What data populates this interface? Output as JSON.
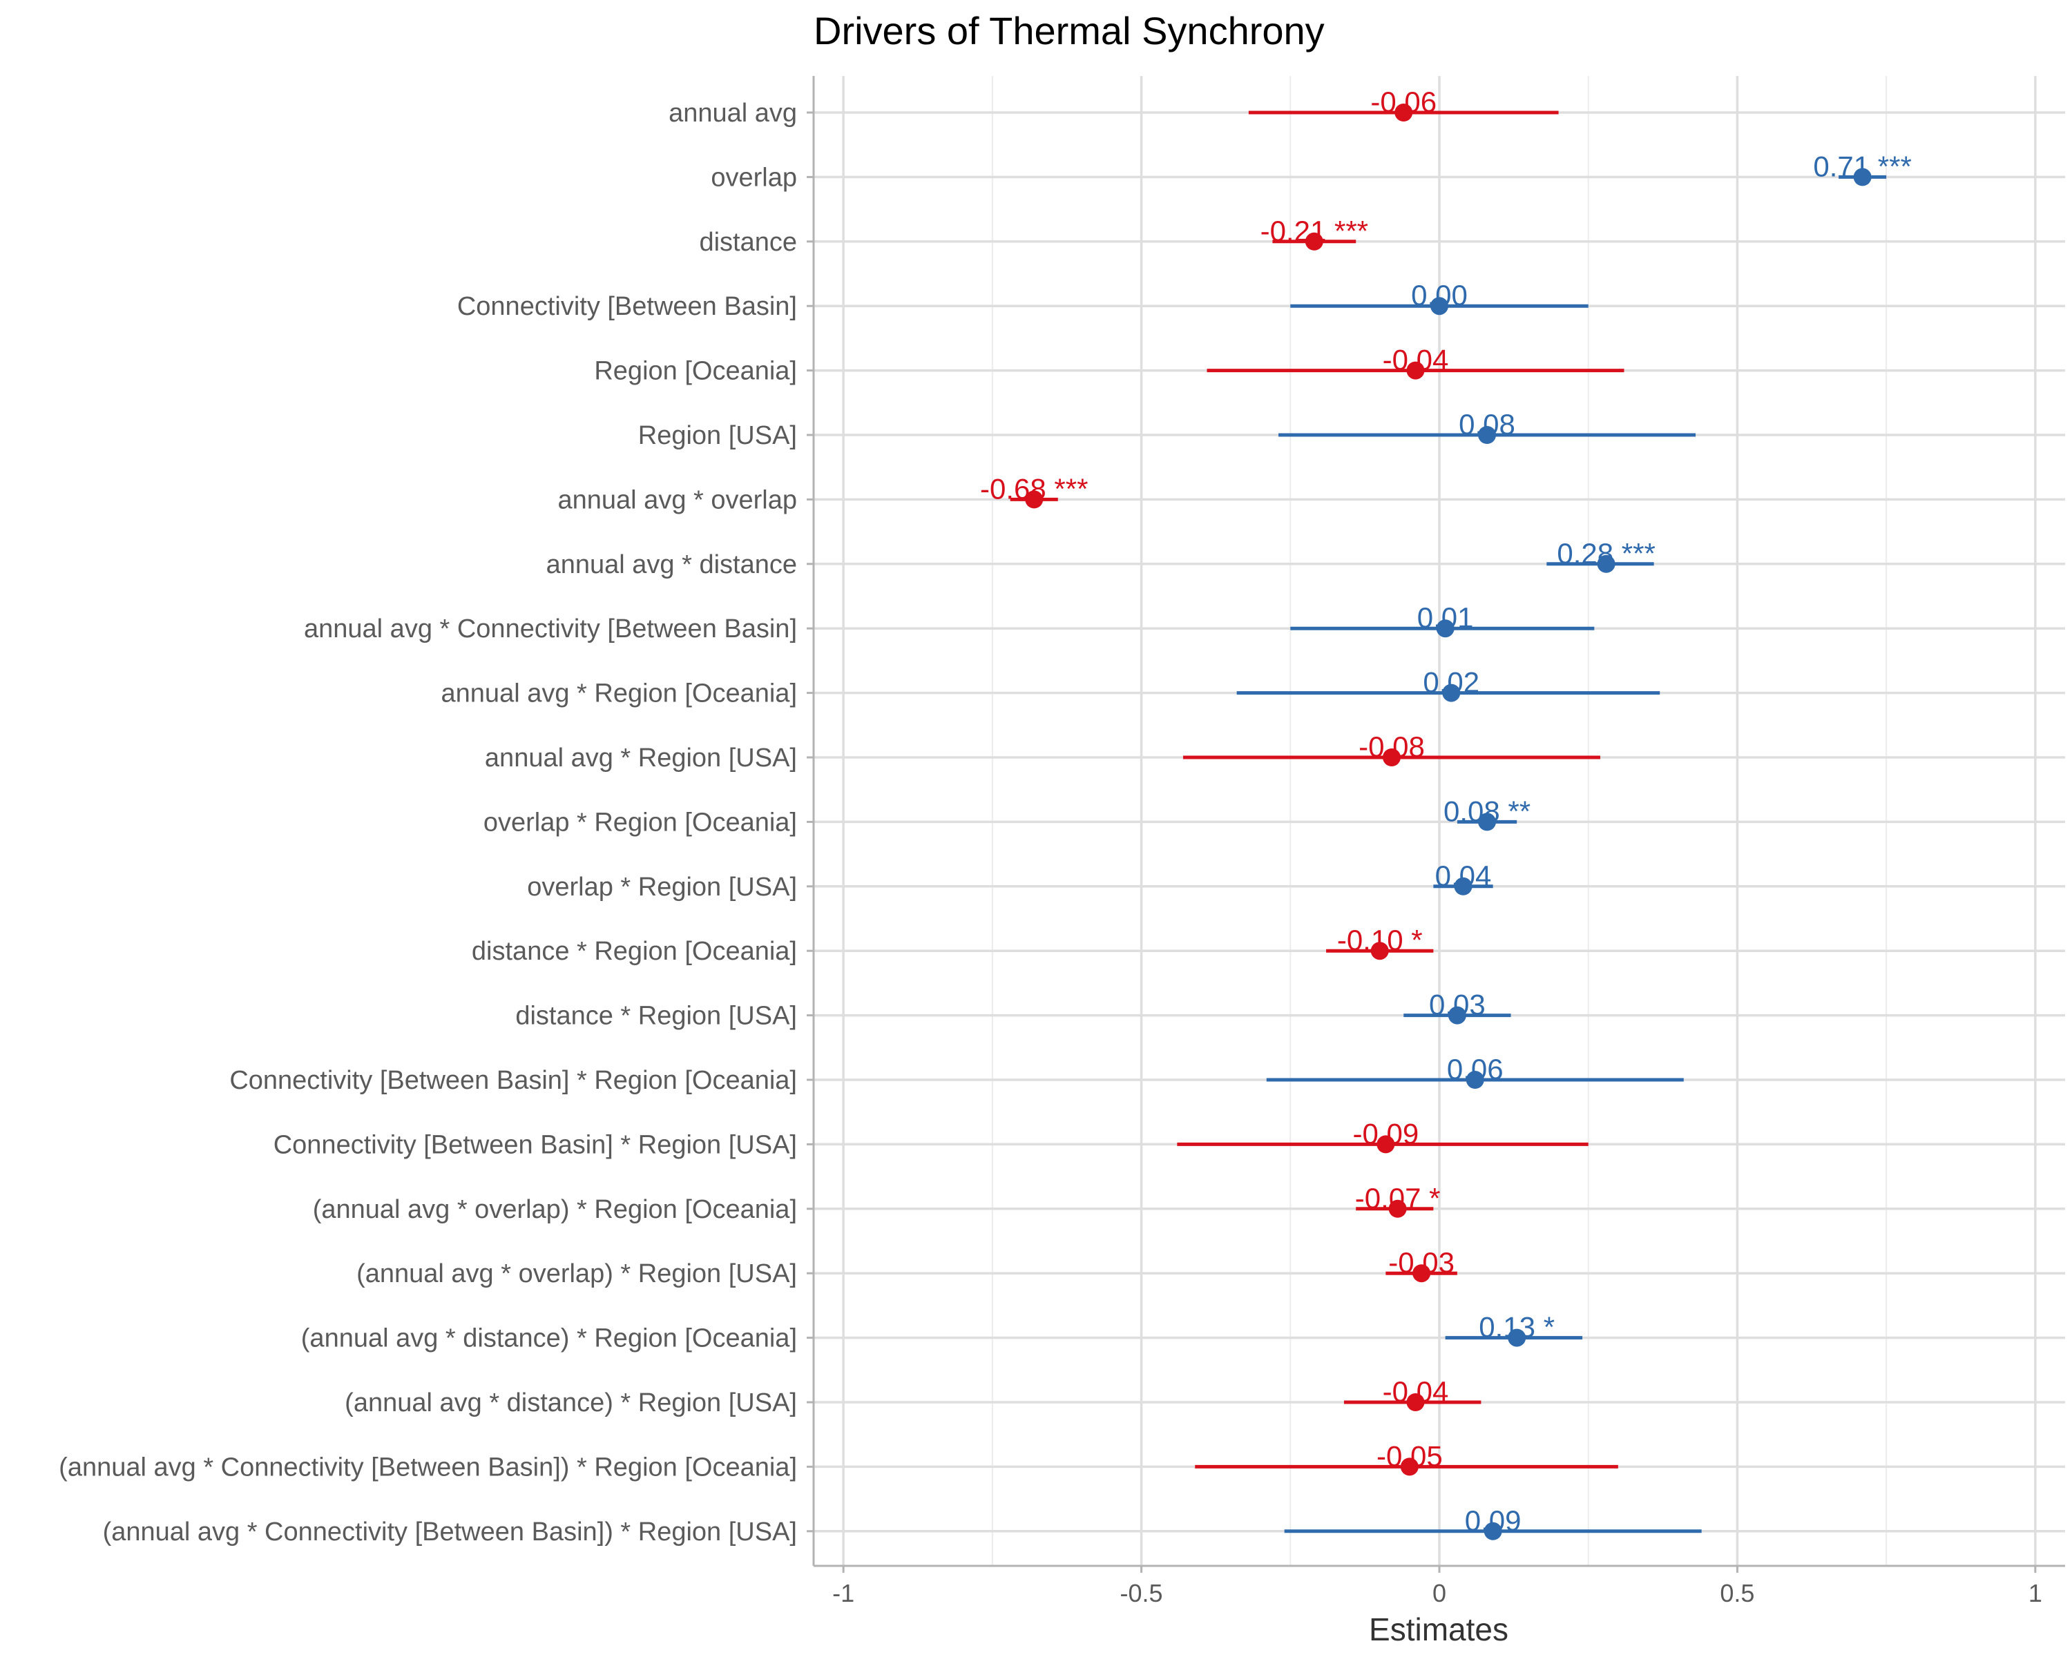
{
  "chart_data": {
    "type": "forest",
    "title": "Drivers of Thermal Synchrony",
    "xlabel": "Estimates",
    "ylabel": "",
    "xlim": [
      -1.05,
      1.05
    ],
    "x_ticks": [
      -1,
      -0.5,
      0,
      0.5,
      1
    ],
    "x_tick_labels": [
      "-1",
      "-0.5",
      "0",
      "0.5",
      "1"
    ],
    "grid": true,
    "colors": {
      "positive": "#2f6aad",
      "negative": "#d7101c"
    },
    "terms": [
      {
        "term": "annual avg",
        "estimate": -0.06,
        "ci_low": -0.32,
        "ci_high": 0.2,
        "label": "-0.06"
      },
      {
        "term": "overlap",
        "estimate": 0.71,
        "ci_low": 0.67,
        "ci_high": 0.75,
        "label": "0.71 ***"
      },
      {
        "term": "distance",
        "estimate": -0.21,
        "ci_low": -0.28,
        "ci_high": -0.14,
        "label": "-0.21 ***"
      },
      {
        "term": "Connectivity [Between Basin]",
        "estimate": 0.0,
        "ci_low": -0.25,
        "ci_high": 0.25,
        "label": "0.00"
      },
      {
        "term": "Region [Oceania]",
        "estimate": -0.04,
        "ci_low": -0.39,
        "ci_high": 0.31,
        "label": "-0.04"
      },
      {
        "term": "Region [USA]",
        "estimate": 0.08,
        "ci_low": -0.27,
        "ci_high": 0.43,
        "label": "0.08"
      },
      {
        "term": "annual avg * overlap",
        "estimate": -0.68,
        "ci_low": -0.72,
        "ci_high": -0.64,
        "label": "-0.68 ***"
      },
      {
        "term": "annual avg * distance",
        "estimate": 0.28,
        "ci_low": 0.18,
        "ci_high": 0.36,
        "label": "0.28 ***"
      },
      {
        "term": "annual avg * Connectivity [Between Basin]",
        "estimate": 0.01,
        "ci_low": -0.25,
        "ci_high": 0.26,
        "label": "0.01"
      },
      {
        "term": "annual avg * Region [Oceania]",
        "estimate": 0.02,
        "ci_low": -0.34,
        "ci_high": 0.37,
        "label": "0.02"
      },
      {
        "term": "annual avg * Region [USA]",
        "estimate": -0.08,
        "ci_low": -0.43,
        "ci_high": 0.27,
        "label": "-0.08"
      },
      {
        "term": "overlap * Region [Oceania]",
        "estimate": 0.08,
        "ci_low": 0.03,
        "ci_high": 0.13,
        "label": "0.08 **"
      },
      {
        "term": "overlap * Region [USA]",
        "estimate": 0.04,
        "ci_low": -0.01,
        "ci_high": 0.09,
        "label": "0.04"
      },
      {
        "term": "distance * Region [Oceania]",
        "estimate": -0.1,
        "ci_low": -0.19,
        "ci_high": -0.01,
        "label": "-0.10 *"
      },
      {
        "term": "distance * Region [USA]",
        "estimate": 0.03,
        "ci_low": -0.06,
        "ci_high": 0.12,
        "label": "0.03"
      },
      {
        "term": "Connectivity [Between Basin] * Region [Oceania]",
        "estimate": 0.06,
        "ci_low": -0.29,
        "ci_high": 0.41,
        "label": "0.06"
      },
      {
        "term": "Connectivity [Between Basin] * Region [USA]",
        "estimate": -0.09,
        "ci_low": -0.44,
        "ci_high": 0.25,
        "label": "-0.09"
      },
      {
        "term": "(annual avg * overlap) * Region [Oceania]",
        "estimate": -0.07,
        "ci_low": -0.14,
        "ci_high": -0.01,
        "label": "-0.07 *"
      },
      {
        "term": "(annual avg * overlap) * Region [USA]",
        "estimate": -0.03,
        "ci_low": -0.09,
        "ci_high": 0.03,
        "label": "-0.03"
      },
      {
        "term": "(annual avg * distance) * Region [Oceania]",
        "estimate": 0.13,
        "ci_low": 0.01,
        "ci_high": 0.24,
        "label": "0.13 *"
      },
      {
        "term": "(annual avg * distance) * Region [USA]",
        "estimate": -0.04,
        "ci_low": -0.16,
        "ci_high": 0.07,
        "label": "-0.04"
      },
      {
        "term": "(annual avg * Connectivity [Between Basin]) * Region [Oceania]",
        "estimate": -0.05,
        "ci_low": -0.41,
        "ci_high": 0.3,
        "label": "-0.05"
      },
      {
        "term": "(annual avg * Connectivity [Between Basin]) * Region [USA]",
        "estimate": 0.09,
        "ci_low": -0.26,
        "ci_high": 0.44,
        "label": "0.09"
      }
    ]
  }
}
